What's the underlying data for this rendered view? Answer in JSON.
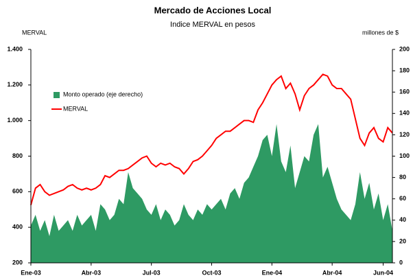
{
  "chart_data": {
    "type": "line",
    "title": "Mercado de Acciones Local",
    "subtitle": "Indice MERVAL en pesos",
    "y_label": "MERVAL",
    "y2_label": "millones de $",
    "categories": [
      "Ene-03",
      null,
      null,
      null,
      null,
      null,
      null,
      null,
      null,
      null,
      null,
      null,
      null,
      "Abr-03",
      null,
      null,
      null,
      null,
      null,
      null,
      null,
      null,
      null,
      null,
      null,
      null,
      "Jul-03",
      null,
      null,
      null,
      null,
      null,
      null,
      null,
      null,
      null,
      null,
      null,
      null,
      "Oct-03",
      null,
      null,
      null,
      null,
      null,
      null,
      null,
      null,
      null,
      null,
      null,
      null,
      "Ene-04",
      null,
      null,
      null,
      null,
      null,
      null,
      null,
      null,
      null,
      null,
      null,
      null,
      "Abr-04",
      null,
      null,
      null,
      null,
      null,
      null,
      null,
      null,
      null,
      null,
      "Jun-04",
      null,
      null
    ],
    "series": [
      {
        "name": "Monto operado (eje derecho)",
        "type": "area",
        "axis": "y2",
        "color": "#2e9a63",
        "values": [
          35,
          45,
          30,
          40,
          25,
          45,
          30,
          35,
          40,
          30,
          45,
          35,
          40,
          45,
          30,
          55,
          50,
          40,
          45,
          60,
          55,
          85,
          70,
          65,
          60,
          50,
          45,
          55,
          40,
          50,
          45,
          35,
          40,
          55,
          45,
          40,
          50,
          45,
          55,
          50,
          55,
          60,
          50,
          65,
          70,
          60,
          75,
          80,
          90,
          100,
          115,
          120,
          100,
          130,
          95,
          85,
          110,
          70,
          85,
          100,
          95,
          120,
          130,
          80,
          90,
          75,
          60,
          50,
          45,
          40,
          55,
          85,
          60,
          75,
          50,
          65,
          40,
          55,
          30
        ]
      },
      {
        "name": "MERVAL",
        "type": "line",
        "color": "#ff0000",
        "values": [
          525,
          620,
          640,
          600,
          580,
          590,
          600,
          610,
          630,
          640,
          620,
          610,
          620,
          610,
          620,
          640,
          690,
          680,
          700,
          720,
          720,
          730,
          750,
          770,
          790,
          800,
          760,
          740,
          760,
          750,
          760,
          740,
          730,
          700,
          730,
          770,
          780,
          800,
          830,
          860,
          900,
          920,
          940,
          940,
          960,
          980,
          1000,
          1000,
          990,
          1060,
          1100,
          1150,
          1200,
          1230,
          1250,
          1180,
          1210,
          1150,
          1060,
          1140,
          1180,
          1200,
          1230,
          1260,
          1250,
          1200,
          1180,
          1180,
          1150,
          1120,
          1010,
          900,
          860,
          930,
          960,
          900,
          880,
          960,
          930
        ]
      }
    ],
    "ylim": [
      200,
      1400
    ],
    "yticks": [
      200,
      400,
      600,
      800,
      {
        "value": 1000,
        "label": "1.000"
      },
      {
        "value": 1200,
        "label": "1.200"
      },
      {
        "value": 1400,
        "label": "1.400"
      }
    ],
    "y2lim": [
      0,
      200
    ],
    "y2ticks": [
      0,
      20,
      40,
      60,
      80,
      100,
      120,
      140,
      160,
      180,
      200
    ],
    "legend": "upper left"
  }
}
